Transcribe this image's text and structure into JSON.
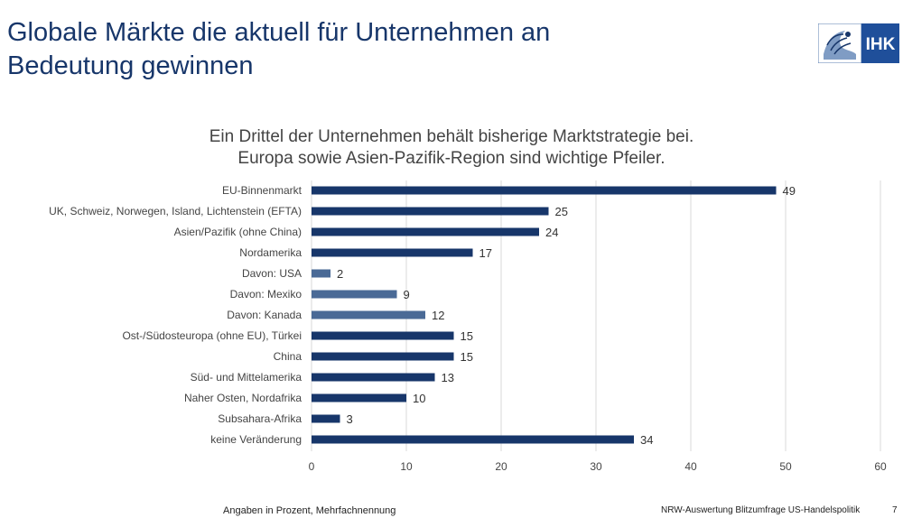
{
  "header": {
    "title_line1": "Globale Märkte die aktuell für Unternehmen an",
    "title_line2": "Bedeutung gewinnen",
    "logo_text": "IHK"
  },
  "chart_data": {
    "type": "bar",
    "orientation": "horizontal",
    "title_line1": "Ein Drittel der Unternehmen behält bisherige Marktstrategie bei.",
    "title_line2": "Europa sowie Asien-Pazifik-Region sind wichtige Pfeiler.",
    "categories": [
      "EU-Binnenmarkt",
      "UK, Schweiz, Norwegen, Island, Lichtenstein (EFTA)",
      "Asien/Pazifik (ohne China)",
      "Nordamerika",
      "Davon: USA",
      "Davon: Mexiko",
      "Davon: Kanada",
      "Ost-/Südosteuropa (ohne EU), Türkei",
      "China",
      "Süd- und Mittelamerika",
      "Naher Osten, Nordafrika",
      "Subsahara-Afrika",
      "keine Veränderung"
    ],
    "values": [
      49,
      25,
      24,
      17,
      2,
      9,
      12,
      15,
      15,
      13,
      10,
      3,
      34
    ],
    "bar_kind": [
      "main",
      "main",
      "main",
      "main",
      "sub",
      "sub",
      "sub",
      "main",
      "main",
      "main",
      "main",
      "main",
      "main"
    ],
    "xlim": [
      0,
      60
    ],
    "xticks": [
      0,
      10,
      20,
      30,
      40,
      50,
      60
    ],
    "grid": true,
    "legend": "none",
    "colors": {
      "main": "#17366a",
      "sub": "#4a6a96",
      "grid": "#d9d9d9",
      "text": "#444444"
    }
  },
  "footer": {
    "note": "Angaben in Prozent, Mehrfachnennung",
    "source": "NRW-Auswertung Blitzumfrage US-Handelspolitik",
    "page": "7"
  }
}
